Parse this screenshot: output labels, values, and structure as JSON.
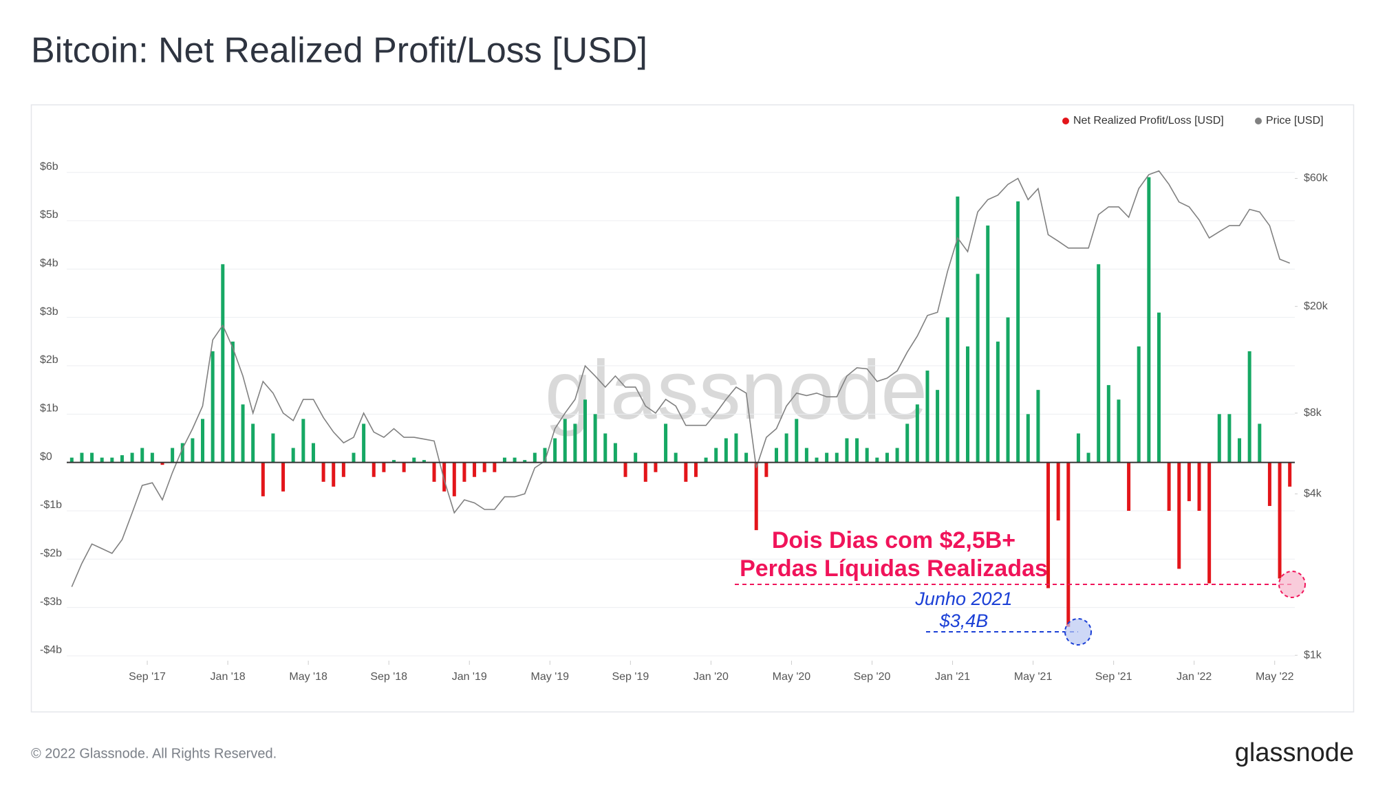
{
  "chart_data": {
    "type": "bar_line",
    "title": "Bitcoin: Net Realized Profit/Loss [USD]",
    "watermark": "glassnode",
    "footer": "© 2022 Glassnode. All Rights Reserved.",
    "logo": "glassnode",
    "annotations": [
      "Dois Dias com $2,5B+",
      "Perdas Líquidas Realizadas",
      "Junho 2021",
      "$3,4B"
    ],
    "xlim": [
      "2017-05",
      "2022-05"
    ],
    "x": [
      "2017-05",
      "2017-05",
      "2017-06",
      "2017-06",
      "2017-07",
      "2017-07",
      "2017-08",
      "2017-08",
      "2017-09",
      "2017-09",
      "2017-10",
      "2017-10",
      "2017-11",
      "2017-11",
      "2017-12",
      "2017-12",
      "2018-01",
      "2018-01",
      "2018-02",
      "2018-02",
      "2018-03",
      "2018-03",
      "2018-04",
      "2018-04",
      "2018-05",
      "2018-05",
      "2018-06",
      "2018-06",
      "2018-07",
      "2018-07",
      "2018-08",
      "2018-08",
      "2018-09",
      "2018-09",
      "2018-10",
      "2018-10",
      "2018-11",
      "2018-11",
      "2018-12",
      "2018-12",
      "2019-01",
      "2019-01",
      "2019-02",
      "2019-02",
      "2019-03",
      "2019-03",
      "2019-04",
      "2019-04",
      "2019-05",
      "2019-05",
      "2019-06",
      "2019-06",
      "2019-07",
      "2019-07",
      "2019-08",
      "2019-08",
      "2019-09",
      "2019-09",
      "2019-10",
      "2019-10",
      "2019-11",
      "2019-11",
      "2019-12",
      "2019-12",
      "2020-01",
      "2020-01",
      "2020-02",
      "2020-02",
      "2020-03",
      "2020-03",
      "2020-04",
      "2020-04",
      "2020-05",
      "2020-05",
      "2020-06",
      "2020-06",
      "2020-07",
      "2020-07",
      "2020-08",
      "2020-08",
      "2020-09",
      "2020-09",
      "2020-10",
      "2020-10",
      "2020-11",
      "2020-11",
      "2020-12",
      "2020-12",
      "2021-01",
      "2021-01",
      "2021-02",
      "2021-02",
      "2021-03",
      "2021-03",
      "2021-04",
      "2021-04",
      "2021-05",
      "2021-05",
      "2021-06",
      "2021-06",
      "2021-07",
      "2021-07",
      "2021-08",
      "2021-08",
      "2021-09",
      "2021-09",
      "2021-10",
      "2021-10",
      "2021-11",
      "2021-11",
      "2021-12",
      "2021-12",
      "2022-01",
      "2022-01",
      "2022-02",
      "2022-02",
      "2022-03",
      "2022-03",
      "2022-04",
      "2022-04",
      "2022-05",
      "2022-05"
    ],
    "series": [
      {
        "name": "Net Realized Profit/Loss [USD]",
        "color": "#e3151a",
        "positive_color": "#16a864",
        "values": [
          0.1,
          0.2,
          0.2,
          0.1,
          0.1,
          0.15,
          0.2,
          0.3,
          0.2,
          -0.05,
          0.3,
          0.4,
          0.5,
          0.9,
          2.3,
          4.1,
          2.5,
          1.2,
          0.8,
          -0.7,
          0.6,
          -0.6,
          0.3,
          0.9,
          0.4,
          -0.4,
          -0.5,
          -0.3,
          0.2,
          0.8,
          -0.3,
          -0.2,
          0.05,
          -0.2,
          0.1,
          0.05,
          -0.4,
          -0.6,
          -0.7,
          -0.4,
          -0.3,
          -0.2,
          -0.2,
          0.1,
          0.1,
          0.05,
          0.2,
          0.3,
          0.5,
          0.9,
          0.8,
          1.3,
          1.0,
          0.6,
          0.4,
          -0.3,
          0.2,
          -0.4,
          -0.2,
          0.8,
          0.2,
          -0.4,
          -0.3,
          0.1,
          0.3,
          0.5,
          0.6,
          0.2,
          -1.4,
          -0.3,
          0.3,
          0.6,
          0.9,
          0.3,
          0.1,
          0.2,
          0.2,
          0.5,
          0.5,
          0.3,
          0.1,
          0.2,
          0.3,
          0.8,
          1.2,
          1.9,
          1.5,
          3.0,
          5.5,
          2.4,
          3.9,
          4.9,
          2.5,
          3.0,
          5.4,
          1.0,
          1.5,
          -2.6,
          -1.2,
          -3.4,
          0.6,
          0.2,
          4.1,
          1.6,
          1.3,
          -1.0,
          2.4,
          5.9,
          3.1,
          -1.0,
          -2.2,
          -0.8,
          -1.0,
          -2.5,
          1.0,
          1.0,
          0.5,
          2.3,
          0.8,
          -0.9,
          -2.4,
          -0.5
        ]
      },
      {
        "name": "Price [USD]",
        "color": "#808080",
        "axis": "y2",
        "values": [
          1.8,
          2.2,
          2.6,
          2.5,
          2.4,
          2.7,
          3.4,
          4.3,
          4.4,
          3.8,
          4.8,
          5.9,
          7.0,
          8.5,
          15,
          17,
          14,
          11,
          8,
          10.5,
          9.5,
          8,
          7.5,
          9,
          9,
          7.7,
          6.8,
          6.2,
          6.5,
          8,
          6.8,
          6.5,
          7,
          6.5,
          6.5,
          6.4,
          6.3,
          4.5,
          3.4,
          3.8,
          3.7,
          3.5,
          3.5,
          3.9,
          3.9,
          4.0,
          5,
          5.3,
          7,
          8,
          9,
          12,
          11,
          10,
          11,
          10,
          10,
          8.5,
          8,
          9,
          8.5,
          7.2,
          7.2,
          7.2,
          8,
          9,
          10,
          9.5,
          5,
          6.5,
          7,
          8.5,
          9.5,
          9.3,
          9.5,
          9.2,
          9.2,
          11,
          11.8,
          11.7,
          10.5,
          10.8,
          11.5,
          13.5,
          15.5,
          18.5,
          19,
          27,
          36,
          32,
          45,
          50,
          52,
          57,
          60,
          50,
          55,
          37,
          35,
          33,
          33,
          33,
          44,
          47,
          47,
          43,
          55,
          62,
          64,
          57,
          49,
          47,
          42,
          36,
          38,
          40,
          40,
          46,
          45,
          40,
          30,
          29
        ]
      }
    ],
    "ylim": [
      -4.1,
      6.28
    ],
    "yticks": [
      {
        "value": 6,
        "label": "$6b"
      },
      {
        "value": 5,
        "label": "$5b"
      },
      {
        "value": 4,
        "label": "$4b"
      },
      {
        "value": 3,
        "label": "$3b"
      },
      {
        "value": 2,
        "label": "$2b"
      },
      {
        "value": 1,
        "label": "$1b"
      },
      {
        "value": 0,
        "label": "$0"
      },
      {
        "value": -1,
        "label": "-$1b"
      },
      {
        "value": -2,
        "label": "-$2b"
      },
      {
        "value": -3,
        "label": "-$3b"
      },
      {
        "value": -4,
        "label": "-$4b"
      }
    ],
    "y2lim": [
      0.955,
      71
    ],
    "y2_log": true,
    "y2ticks": [
      {
        "value": 60,
        "label": "$60k"
      },
      {
        "value": 20,
        "label": "$20k"
      },
      {
        "value": 8,
        "label": "$8k"
      },
      {
        "value": 4,
        "label": "$4k"
      },
      {
        "value": 1,
        "label": "$1k"
      }
    ],
    "xticks": [
      {
        "value": "2017-09",
        "label": "Sep '17"
      },
      {
        "value": "2018-01",
        "label": "Jan '18"
      },
      {
        "value": "2018-05",
        "label": "May '18"
      },
      {
        "value": "2018-09",
        "label": "Sep '18"
      },
      {
        "value": "2019-01",
        "label": "Jan '19"
      },
      {
        "value": "2019-05",
        "label": "May '19"
      },
      {
        "value": "2019-09",
        "label": "Sep '19"
      },
      {
        "value": "2020-01",
        "label": "Jan '20"
      },
      {
        "value": "2020-05",
        "label": "May '20"
      },
      {
        "value": "2020-09",
        "label": "Sep '20"
      },
      {
        "value": "2021-01",
        "label": "Jan '21"
      },
      {
        "value": "2021-05",
        "label": "May '21"
      },
      {
        "value": "2021-09",
        "label": "Sep '21"
      },
      {
        "value": "2022-01",
        "label": "Jan '22"
      },
      {
        "value": "2022-05",
        "label": "May '22"
      }
    ],
    "grid": true,
    "legend": "top-right"
  }
}
